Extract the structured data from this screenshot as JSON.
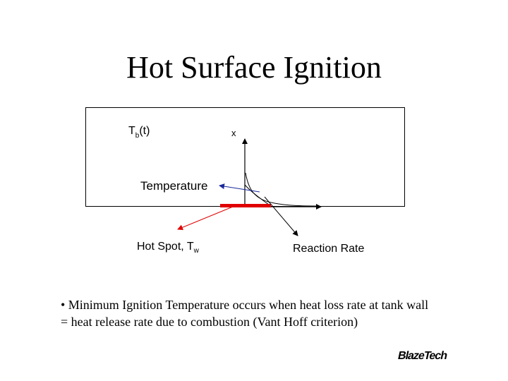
{
  "title": "Hot Surface Ignition",
  "diagram": {
    "tb_main": "T",
    "tb_sub": "b",
    "tb_suffix": "(t)",
    "x_axis": "x",
    "temperature": "Temperature",
    "hotspot_main": "Hot Spot, T",
    "hotspot_sub": "w",
    "reaction_rate": "Reaction Rate",
    "colors": {
      "hot_spot": "#e00000",
      "red_arrow": "#e00000",
      "blue_arrow": "#1a2a9c",
      "black": "#000000"
    }
  },
  "bullet": {
    "line1": "• Minimum Ignition Temperature occurs when heat loss rate at tank wall",
    "line2": "= heat release rate due to combustion (Vant Hoff criterion)"
  },
  "logo": "BlazeTech"
}
